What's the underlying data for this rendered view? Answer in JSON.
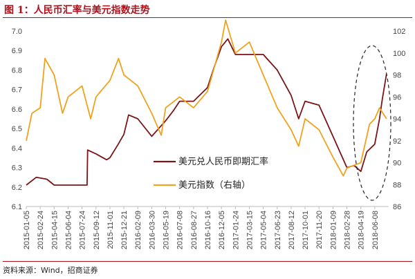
{
  "header": {
    "title": "图 1：人民币汇率与美元指数走势"
  },
  "footer": {
    "source": "资料来源：Wind，招商证券"
  },
  "colors": {
    "series_usdcny": "#7a1416",
    "series_dxy": "#f0a21c",
    "title": "#b0101a",
    "highlight_ellipse": "#222222"
  },
  "chart_data": {
    "type": "line",
    "title": "",
    "y_left": {
      "ylim": [
        6.1,
        7.0
      ],
      "ticks": [
        "6.1",
        "6.2",
        "6.3",
        "6.4",
        "6.5",
        "6.6",
        "6.7",
        "6.8",
        "6.9",
        "7.0"
      ]
    },
    "y_right": {
      "ylim": [
        86,
        102
      ],
      "ticks": [
        "86",
        "88",
        "90",
        "92",
        "94",
        "96",
        "98",
        "100",
        "102"
      ]
    },
    "x_tick_labels": [
      "2015-01-05",
      "2015-02-24",
      "2015-04-15",
      "2015-06-04",
      "2015-07-24",
      "2015-09-12",
      "2015-11-01",
      "2015-12-21",
      "2016-02-09",
      "2016-03-30",
      "2016-05-19",
      "2016-07-08",
      "2016-08-27",
      "2016-10-16",
      "2016-12-05",
      "2017-01-24",
      "2017-03-15",
      "2017-05-04",
      "2017-06-23",
      "2017-08-12",
      "2017-10-01",
      "2017-11-20",
      "2018-01-09",
      "2018-02-28",
      "2018-04-19",
      "2018-06-08"
    ],
    "legend": [
      "美元兑人民币即期汇率",
      "美元指数（右轴）"
    ],
    "legend_placement": "center-right",
    "grid": false,
    "series": [
      {
        "name": "美元兑人民币即期汇率",
        "axis": "left",
        "x": [
          "2015-01-05",
          "2015-02-10",
          "2015-03-20",
          "2015-04-15",
          "2015-06-04",
          "2015-07-24",
          "2015-08-11",
          "2015-08-13",
          "2015-09-12",
          "2015-10-20",
          "2015-11-01",
          "2015-12-01",
          "2015-12-21",
          "2016-01-07",
          "2016-02-09",
          "2016-03-30",
          "2016-05-19",
          "2016-06-15",
          "2016-07-08",
          "2016-08-27",
          "2016-10-16",
          "2016-11-10",
          "2016-12-05",
          "2016-12-28",
          "2017-01-24",
          "2017-03-15",
          "2017-05-04",
          "2017-06-23",
          "2017-08-12",
          "2017-09-08",
          "2017-10-01",
          "2017-11-20",
          "2018-01-09",
          "2018-02-28",
          "2018-03-26",
          "2018-04-19",
          "2018-05-10",
          "2018-06-08",
          "2018-06-25",
          "2018-07-05",
          "2018-07-20"
        ],
        "y": [
          6.21,
          6.25,
          6.24,
          6.21,
          6.21,
          6.21,
          6.21,
          6.39,
          6.37,
          6.34,
          6.35,
          6.42,
          6.47,
          6.57,
          6.55,
          6.46,
          6.54,
          6.59,
          6.64,
          6.64,
          6.71,
          6.82,
          6.92,
          6.96,
          6.88,
          6.88,
          6.88,
          6.8,
          6.67,
          6.55,
          6.64,
          6.62,
          6.46,
          6.3,
          6.31,
          6.28,
          6.38,
          6.42,
          6.55,
          6.65,
          6.78
        ]
      },
      {
        "name": "美元指数（右轴）",
        "axis": "right",
        "x": [
          "2015-01-05",
          "2015-01-25",
          "2015-02-24",
          "2015-03-13",
          "2015-04-15",
          "2015-05-15",
          "2015-06-04",
          "2015-07-24",
          "2015-08-24",
          "2015-09-12",
          "2015-11-01",
          "2015-12-02",
          "2015-12-21",
          "2016-02-09",
          "2016-03-30",
          "2016-05-03",
          "2016-05-19",
          "2016-07-08",
          "2016-08-27",
          "2016-10-16",
          "2016-12-05",
          "2016-12-20",
          "2017-01-24",
          "2017-03-15",
          "2017-05-04",
          "2017-06-23",
          "2017-08-12",
          "2017-09-08",
          "2017-10-01",
          "2017-11-20",
          "2018-01-09",
          "2018-02-15",
          "2018-02-28",
          "2018-04-19",
          "2018-05-20",
          "2018-06-08",
          "2018-06-25",
          "2018-07-20"
        ],
        "y": [
          92,
          94.5,
          95,
          99.5,
          98,
          94.5,
          96,
          97,
          94,
          96,
          97.5,
          99.5,
          98,
          97,
          94.5,
          92.5,
          95,
          96,
          95,
          96.5,
          101,
          103,
          100,
          101,
          98,
          95,
          93,
          91.5,
          94,
          93,
          90.5,
          88.8,
          89.5,
          90,
          93.5,
          94,
          95,
          94
        ]
      }
    ]
  }
}
